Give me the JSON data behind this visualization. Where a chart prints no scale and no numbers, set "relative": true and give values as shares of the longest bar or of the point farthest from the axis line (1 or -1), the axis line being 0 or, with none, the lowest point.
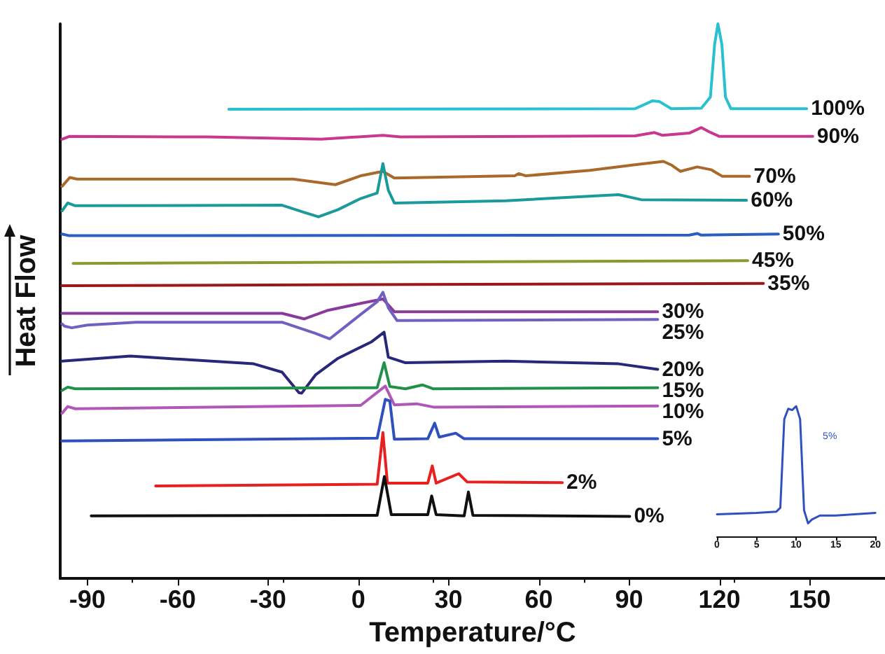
{
  "chart_data": [
    {
      "type": "line",
      "relative": true,
      "xlabel": "Temperature/°C",
      "ylabel": "Heat Flow",
      "xlim": [
        -99,
        175
      ],
      "xticks": [
        -90,
        -60,
        -30,
        0,
        30,
        60,
        90,
        120,
        150
      ],
      "tick_labels": "x",
      "grid": false,
      "legend": false,
      "marker": "none",
      "line_style": "solid",
      "series": [
        {
          "name": "100%",
          "color": "#29c0d0",
          "x": [
            -43,
            92,
            97.7,
            100,
            104,
            114,
            117,
            118.4,
            119.5,
            120.8,
            122,
            123.8,
            149
          ],
          "values": [
            0.846,
            0.847,
            0.861,
            0.86,
            0.847,
            0.848,
            0.868,
            0.963,
            1.0,
            0.963,
            0.868,
            0.847,
            0.847
          ]
        },
        {
          "name": "90%",
          "color": "#c8388f",
          "x": [
            -98.4,
            -96,
            -50,
            -12.3,
            8.2,
            14,
            92,
            98.4,
            101,
            110,
            114,
            116.7,
            120,
            151
          ],
          "values": [
            0.792,
            0.797,
            0.796,
            0.792,
            0.799,
            0.796,
            0.798,
            0.804,
            0.799,
            0.803,
            0.813,
            0.805,
            0.797,
            0.797
          ]
        },
        {
          "name": "70%",
          "color": "#a8692a",
          "x": [
            -98.4,
            -95.8,
            -93.4,
            -21.6,
            -7.6,
            0.8,
            8.2,
            12,
            52,
            53.3,
            55.7,
            77,
            92,
            101.4,
            104.2,
            107,
            112.6,
            117.2,
            121,
            130
          ],
          "values": [
            0.707,
            0.723,
            0.72,
            0.72,
            0.71,
            0.726,
            0.734,
            0.722,
            0.726,
            0.73,
            0.726,
            0.736,
            0.746,
            0.752,
            0.745,
            0.734,
            0.742,
            0.737,
            0.725,
            0.725
          ]
        },
        {
          "name": "60%",
          "color": "#1a9a9a",
          "x": [
            -98.4,
            -96.5,
            -94,
            -25.3,
            -17.9,
            -13.2,
            -6.7,
            0.8,
            6.3,
            8.2,
            10,
            12,
            49,
            86.5,
            94,
            129
          ],
          "values": [
            0.663,
            0.677,
            0.672,
            0.673,
            0.66,
            0.652,
            0.665,
            0.685,
            0.695,
            0.748,
            0.7,
            0.677,
            0.681,
            0.692,
            0.683,
            0.682
          ]
        },
        {
          "name": "50%",
          "color": "#2a5fc0",
          "x": [
            -98.4,
            -96,
            110,
            112.6,
            114,
            139.6
          ],
          "values": [
            0.621,
            0.618,
            0.619,
            0.622,
            0.619,
            0.621
          ]
        },
        {
          "name": "45%",
          "color": "#8a9a30",
          "x": [
            -94.7,
            129.4
          ],
          "values": [
            0.568,
            0.573
          ]
        },
        {
          "name": "35%",
          "color": "#9a1818",
          "x": [
            -98.4,
            134.6
          ],
          "values": [
            0.528,
            0.532
          ]
        },
        {
          "name": "30%",
          "color": "#8a3a9a",
          "x": [
            -98.4,
            -25.3,
            -17.9,
            -10.4,
            0.8,
            8.2,
            12,
            99.5
          ],
          "values": [
            0.478,
            0.478,
            0.468,
            0.483,
            0.496,
            0.504,
            0.481,
            0.481
          ]
        },
        {
          "name": "25%",
          "color": "#7060c0",
          "x": [
            -98.4,
            -97.6,
            -95.2,
            -90,
            -73.8,
            -25.3,
            -14.2,
            -9.5,
            -4.8,
            0.8,
            6.3,
            8.2,
            10,
            12.9,
            99.5
          ],
          "values": [
            0.459,
            0.455,
            0.452,
            0.457,
            0.462,
            0.462,
            0.442,
            0.432,
            0.452,
            0.476,
            0.499,
            0.516,
            0.488,
            0.465,
            0.467
          ]
        },
        {
          "name": "20%",
          "color": "#28287a",
          "x": [
            -98.4,
            -75.7,
            -34.7,
            -25.3,
            -19.7,
            -18.8,
            -14.2,
            -6.7,
            4.5,
            8.6,
            10,
            15.7,
            49,
            86.5,
            99.5
          ],
          "values": [
            0.392,
            0.401,
            0.387,
            0.372,
            0.335,
            0.334,
            0.367,
            0.397,
            0.427,
            0.444,
            0.399,
            0.389,
            0.392,
            0.387,
            0.377
          ]
        },
        {
          "name": "15%",
          "color": "#22904a",
          "x": [
            -98.4,
            -96.5,
            -94,
            6.3,
            8.6,
            10.5,
            15.7,
            21.3,
            25,
            99.5
          ],
          "values": [
            0.339,
            0.345,
            0.342,
            0.344,
            0.389,
            0.346,
            0.342,
            0.349,
            0.342,
            0.344
          ]
        },
        {
          "name": "10%",
          "color": "#b058b8",
          "x": [
            -98.4,
            -96.5,
            -94,
            0.8,
            9,
            12,
            19.4,
            25,
            99.5
          ],
          "values": [
            0.298,
            0.31,
            0.306,
            0.312,
            0.347,
            0.313,
            0.315,
            0.309,
            0.311
          ]
        },
        {
          "name": "5%",
          "color": "#3050c0",
          "x": [
            -98.4,
            6.3,
            9,
            10.5,
            12,
            23.1,
            25.4,
            26.9,
            32.4,
            35.2,
            99.5
          ],
          "values": [
            0.248,
            0.253,
            0.323,
            0.32,
            0.251,
            0.252,
            0.28,
            0.255,
            0.262,
            0.252,
            0.252
          ]
        },
        {
          "name": "2%",
          "color": "#e82020",
          "x": [
            -67.3,
            6.3,
            8.2,
            9.7,
            23.1,
            24.6,
            25.9,
            33.4,
            36.2,
            67.8
          ],
          "values": [
            0.167,
            0.17,
            0.263,
            0.172,
            0.172,
            0.203,
            0.172,
            0.189,
            0.174,
            0.173
          ]
        },
        {
          "name": "0%",
          "color": "#101010",
          "x": [
            -88.7,
            6.3,
            8.7,
            11,
            23.1,
            24.4,
            25.9,
            35.2,
            36.6,
            38.1,
            90.2
          ],
          "values": [
            0.113,
            0.114,
            0.184,
            0.115,
            0.115,
            0.149,
            0.115,
            0.113,
            0.156,
            0.114,
            0.112
          ]
        }
      ]
    },
    {
      "type": "line",
      "relative": true,
      "xlim": [
        0,
        20
      ],
      "xticks": [
        0,
        5,
        10,
        15,
        20
      ],
      "tick_labels": "x",
      "grid": false,
      "legend": false,
      "marker": "none",
      "line_style": "solid",
      "series": [
        {
          "name": "5%",
          "color": "#3050c0",
          "x": [
            0,
            5,
            7.5,
            8,
            8.5,
            9,
            9.5,
            10,
            10.5,
            11,
            11.5,
            12,
            13,
            15,
            20
          ],
          "values": [
            0.17,
            0.18,
            0.19,
            0.22,
            0.9,
            0.98,
            0.97,
            1.0,
            0.9,
            0.2,
            0.1,
            0.13,
            0.16,
            0.16,
            0.18
          ]
        }
      ]
    }
  ]
}
